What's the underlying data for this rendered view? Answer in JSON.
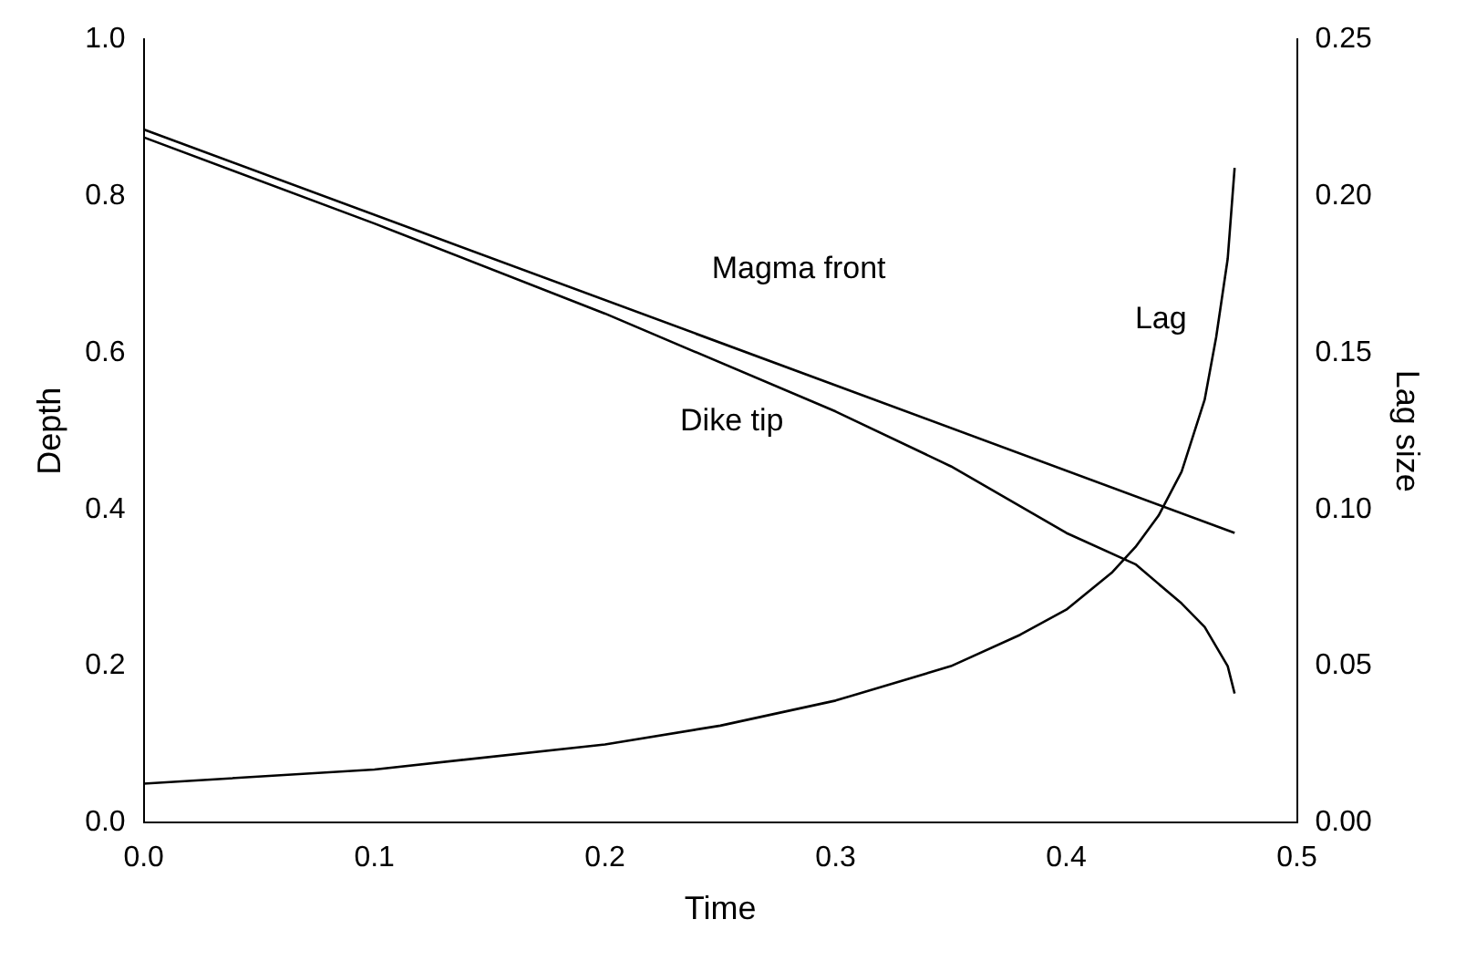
{
  "chart_data": {
    "type": "line",
    "xlabel": "Time",
    "ylabel": "Depth",
    "y2label": "Lag size",
    "xlim": [
      0,
      0.5
    ],
    "xticks": [
      {
        "value": 0,
        "label": "0.0"
      },
      0.1,
      0.2,
      0.3,
      0.4,
      0.5
    ],
    "ylim": [
      0,
      1
    ],
    "yticks": [
      {
        "value": 0,
        "label": "0.0"
      },
      0.2,
      0.4,
      0.6,
      0.8,
      {
        "value": 1,
        "label": "1.0"
      }
    ],
    "y2lim": [
      0,
      0.25
    ],
    "y2ticks": [
      {
        "value": 0,
        "label": "0.00"
      },
      0.05,
      {
        "value": 0.1,
        "label": "0.10"
      },
      0.15,
      {
        "value": 0.2,
        "label": "0.20"
      },
      0.25
    ],
    "grid": false,
    "marker": "none",
    "line_style": "solid",
    "series": [
      {
        "name": "Magma front",
        "color": "#000000",
        "x": [
          0,
          0.473
        ],
        "values": [
          0.885,
          0.37
        ]
      },
      {
        "name": "Dike tip",
        "color": "#000000",
        "x": [
          0,
          0.1,
          0.2,
          0.3,
          0.35,
          0.4,
          0.43,
          0.45,
          0.46,
          0.47,
          0.473
        ],
        "values": [
          0.875,
          0.765,
          0.65,
          0.525,
          0.455,
          0.37,
          0.33,
          0.28,
          0.25,
          0.2,
          0.165
        ]
      },
      {
        "name": "Lag",
        "color": "#000000",
        "axis": "y2",
        "x": [
          0,
          0.1,
          0.2,
          0.25,
          0.3,
          0.35,
          0.38,
          0.4,
          0.42,
          0.43,
          0.44,
          0.45,
          0.46,
          0.465,
          0.47,
          0.473
        ],
        "values": [
          0.0125,
          0.017,
          0.025,
          0.031,
          0.039,
          0.05,
          0.06,
          0.068,
          0.08,
          0.088,
          0.098,
          0.112,
          0.135,
          0.155,
          0.18,
          0.209
        ]
      }
    ]
  }
}
